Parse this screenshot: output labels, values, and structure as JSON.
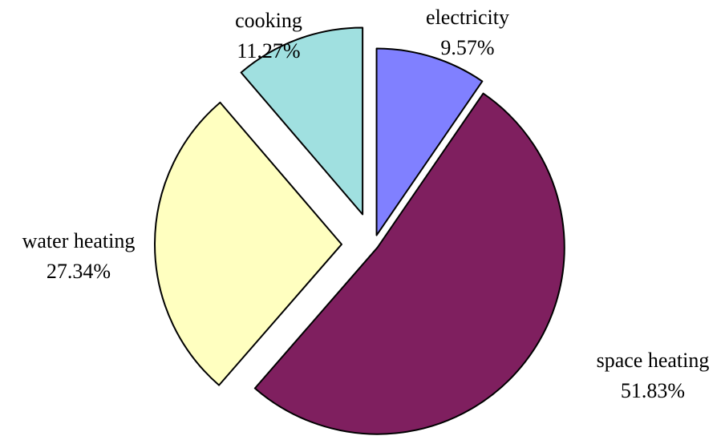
{
  "chart_data": {
    "type": "pie",
    "title": "",
    "slices": [
      {
        "label": "electricity",
        "value_text": "9.57%",
        "value": 9.57,
        "color": "#8080ff"
      },
      {
        "label": "space heating",
        "value_text": "51.83%",
        "value": 51.83,
        "color": "#7f1f5f"
      },
      {
        "label": "water heating",
        "value_text": "27.34%",
        "value": 27.34,
        "color": "#ffffc0"
      },
      {
        "label": "cooking",
        "value_text": "11.27%",
        "value": 11.27,
        "color": "#a0e0e0"
      }
    ],
    "start_angle": "12 o'clock",
    "direction": "clockwise",
    "exploded": true,
    "legend": "none"
  }
}
